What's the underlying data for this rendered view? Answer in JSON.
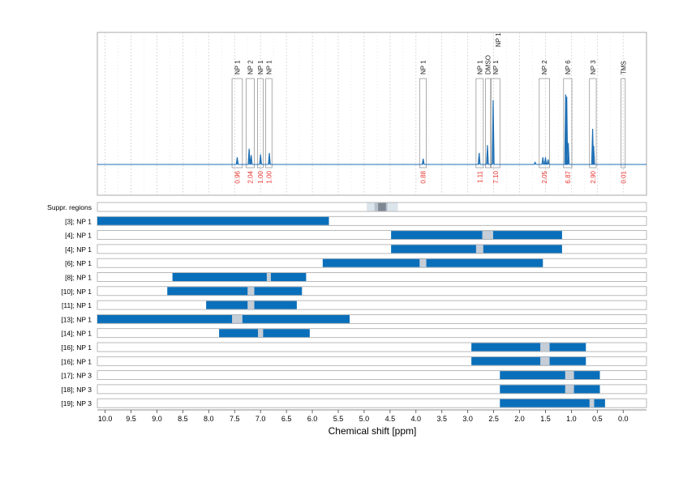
{
  "chart_data": {
    "type": "nmr-spectrum-with-ranges",
    "xlabel": "Chemical shift [ppm]",
    "xlim": [
      10.15,
      -0.45
    ],
    "x_ticks": [
      10.0,
      9.5,
      9.0,
      8.5,
      8.0,
      7.5,
      7.0,
      6.5,
      6.0,
      5.5,
      5.0,
      4.5,
      4.0,
      3.5,
      3.0,
      2.5,
      2.0,
      1.5,
      1.0,
      0.5,
      0.0
    ],
    "x_tick_labels": [
      "10.0",
      "9.5",
      "9.0",
      "8.5",
      "8.0",
      "7.5",
      "7.0",
      "6.5",
      "6.0",
      "5.5",
      "5.0",
      "4.5",
      "4.0",
      "3.5",
      "3.0",
      "2.5",
      "2.0",
      "1.5",
      "1.0",
      "0.5",
      "0.0"
    ],
    "grid": "vertical dotted",
    "spectrum_peaks": [
      {
        "ppm": 7.45,
        "height": 0.1
      },
      {
        "ppm": 7.22,
        "height": 0.22
      },
      {
        "ppm": 7.18,
        "height": 0.13
      },
      {
        "ppm": 7.0,
        "height": 0.14
      },
      {
        "ppm": 6.83,
        "height": 0.16
      },
      {
        "ppm": 3.86,
        "height": 0.08
      },
      {
        "ppm": 2.78,
        "height": 0.16
      },
      {
        "ppm": 2.62,
        "height": 0.27
      },
      {
        "ppm": 2.51,
        "height": 0.9
      },
      {
        "ppm": 1.55,
        "height": 0.1
      },
      {
        "ppm": 1.5,
        "height": 0.1
      },
      {
        "ppm": 1.45,
        "height": 0.07
      },
      {
        "ppm": 1.11,
        "height": 0.98
      },
      {
        "ppm": 1.09,
        "height": 0.95
      },
      {
        "ppm": 1.06,
        "height": 0.3
      },
      {
        "ppm": 0.59,
        "height": 0.5
      },
      {
        "ppm": 0.57,
        "height": 0.26
      },
      {
        "ppm": 1.7,
        "height": 0.03
      }
    ],
    "peak_regions": [
      {
        "label": "NP 1",
        "from": 7.55,
        "to": 7.35,
        "integral": "0.96"
      },
      {
        "label": "NP 2",
        "from": 7.28,
        "to": 7.12,
        "integral": "2.04"
      },
      {
        "label": "NP 1",
        "from": 7.06,
        "to": 6.95,
        "integral": "1.00"
      },
      {
        "label": "NP 1",
        "from": 6.9,
        "to": 6.78,
        "integral": "1.00"
      },
      {
        "label": "NP 1",
        "from": 3.93,
        "to": 3.8,
        "integral": "0.88"
      },
      {
        "label": "NP 1",
        "from": 2.84,
        "to": 2.7,
        "integral": "1.11"
      },
      {
        "label": "DMSO",
        "from": 2.66,
        "to": 2.56,
        "integral": ""
      },
      {
        "label": "NP 1",
        "from": 2.55,
        "to": 2.38,
        "integral": "7.10"
      },
      {
        "label": "NP 2",
        "from": 1.62,
        "to": 1.42,
        "integral": "2.05"
      },
      {
        "label": "NP 6",
        "from": 1.15,
        "to": 0.99,
        "integral": "6.87"
      },
      {
        "label": "NP 3",
        "from": 0.65,
        "to": 0.52,
        "integral": "2.90"
      },
      {
        "label": "TMS",
        "from": 0.04,
        "to": -0.04,
        "integral": "0.01"
      }
    ],
    "suppressed_regions": {
      "label": "Suppr. regions",
      "outer": [
        4.95,
        4.35
      ],
      "inner": [
        4.8,
        4.55
      ],
      "core": [
        4.73,
        4.58
      ]
    },
    "range_rows": [
      {
        "label": "[3]; NP 1",
        "from": 10.15,
        "to": 5.68,
        "gap": null
      },
      {
        "label": "[4]; NP 1",
        "from": 4.48,
        "to": 1.18,
        "gap": [
          2.72,
          2.51
        ]
      },
      {
        "label": "[4]; NP 1",
        "from": 4.48,
        "to": 1.18,
        "gap": [
          2.84,
          2.7
        ]
      },
      {
        "label": "[6]; NP 1",
        "from": 5.8,
        "to": 1.55,
        "gap": [
          3.93,
          3.8
        ]
      },
      {
        "label": "[8]; NP 1",
        "from": 8.7,
        "to": 6.12,
        "gap": [
          6.88,
          6.8
        ]
      },
      {
        "label": "[10]; NP 1",
        "from": 8.8,
        "to": 6.2,
        "gap": [
          7.25,
          7.12
        ]
      },
      {
        "label": "[11]; NP 1",
        "from": 8.05,
        "to": 6.3,
        "gap": [
          7.25,
          7.12
        ]
      },
      {
        "label": "[13]; NP 1",
        "from": 10.15,
        "to": 5.28,
        "gap": [
          7.55,
          7.35
        ]
      },
      {
        "label": "[14]; NP 1",
        "from": 7.8,
        "to": 6.05,
        "gap": [
          7.05,
          6.95
        ]
      },
      {
        "label": "[16]; NP 1",
        "from": 2.93,
        "to": 0.72,
        "gap": [
          1.6,
          1.42
        ]
      },
      {
        "label": "[16]; NP 1",
        "from": 2.93,
        "to": 0.72,
        "gap": [
          1.6,
          1.42
        ]
      },
      {
        "label": "[17]; NP 3",
        "from": 2.38,
        "to": 0.45,
        "gap": [
          1.12,
          0.95
        ]
      },
      {
        "label": "[18]; NP 3",
        "from": 2.38,
        "to": 0.45,
        "gap": [
          1.12,
          0.95
        ]
      },
      {
        "label": "[19]; NP 3",
        "from": 2.38,
        "to": 0.35,
        "gap": [
          0.65,
          0.56
        ]
      }
    ],
    "colors": {
      "spectrum": "#1f6fb4",
      "range_bar": "#0a6fba",
      "gap": "#c5cdd6",
      "integral_text": "#e8322e",
      "frame": "#a8a8a8",
      "grid": "#c4c4c4",
      "suppr_outer": "#dce4ec",
      "suppr_inner": "#b6c2cf",
      "suppr_core": "#7d8893"
    }
  }
}
